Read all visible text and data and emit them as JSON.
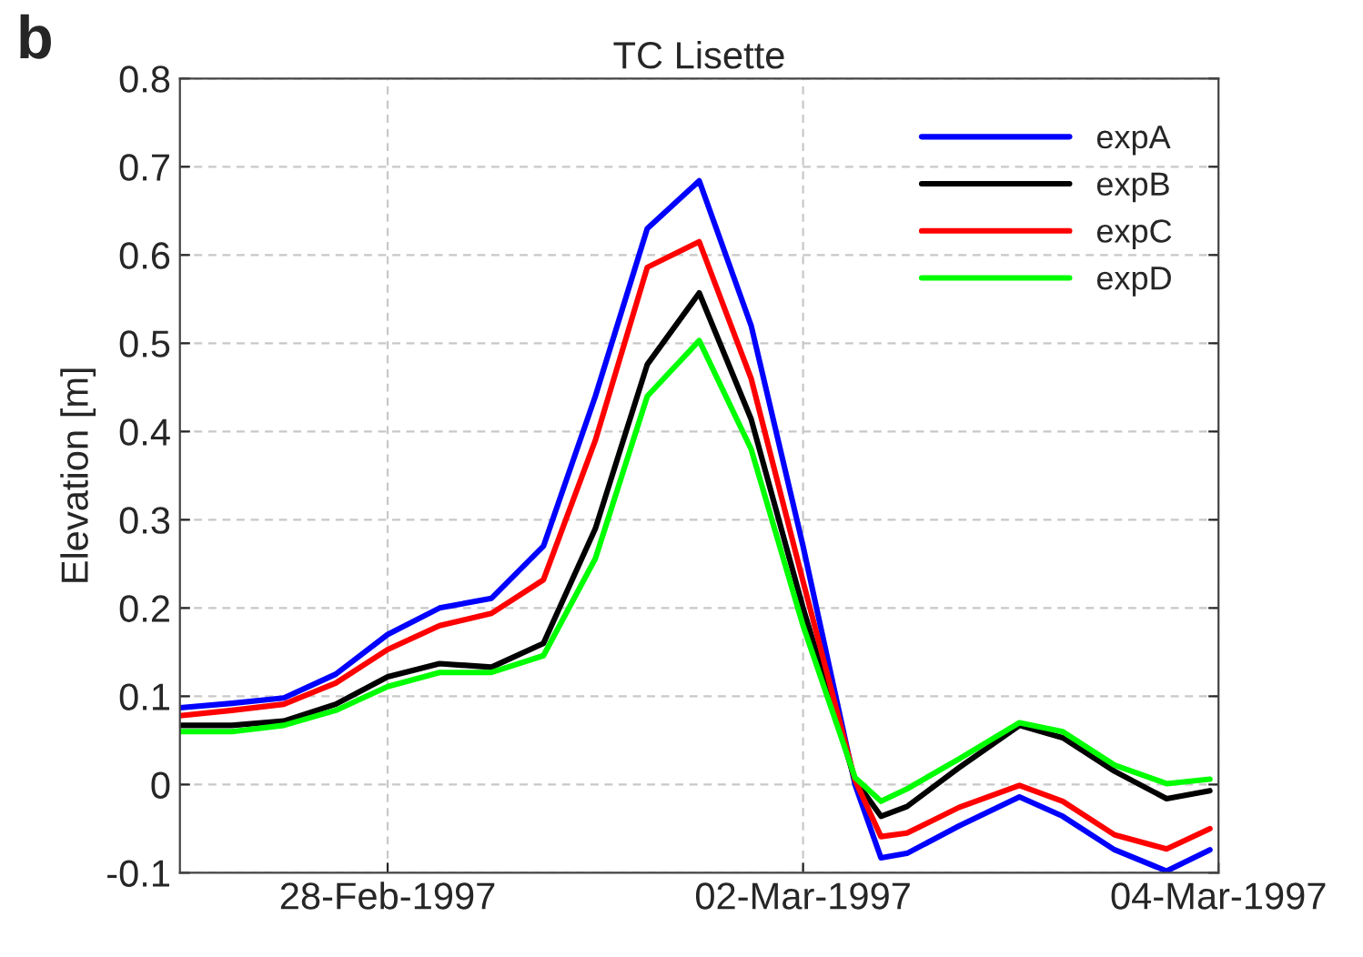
{
  "chart_data": {
    "type": "line",
    "title": "TC Lisette",
    "ylabel": "Elevation [m]",
    "annotations": [
      "b"
    ],
    "x": [
      "1997-02-27T00:00",
      "1997-02-27T06:00",
      "1997-02-27T12:00",
      "1997-02-27T18:00",
      "1997-02-28T00:00",
      "1997-02-28T06:00",
      "1997-02-28T12:00",
      "1997-02-28T18:00",
      "1997-03-01T00:00",
      "1997-03-01T06:00",
      "1997-03-01T12:00",
      "1997-03-01T18:00",
      "1997-03-02T00:00",
      "1997-03-02T06:00",
      "1997-03-02T09:00",
      "1997-03-02T12:00",
      "1997-03-02T18:00",
      "1997-03-03T01:00",
      "1997-03-03T06:00",
      "1997-03-03T12:00",
      "1997-03-03T18:00",
      "1997-03-03T23:00"
    ],
    "series": [
      {
        "name": "expA",
        "color": "#0000ff",
        "values": [
          0.087,
          0.092,
          0.098,
          0.125,
          0.17,
          0.2,
          0.211,
          0.27,
          0.44,
          0.63,
          0.684,
          0.52,
          0.27,
          0.0,
          -0.083,
          -0.078,
          -0.047,
          -0.014,
          -0.036,
          -0.074,
          -0.098,
          -0.074
        ]
      },
      {
        "name": "expB",
        "color": "#000000",
        "values": [
          0.067,
          0.067,
          0.072,
          0.091,
          0.122,
          0.137,
          0.133,
          0.16,
          0.29,
          0.476,
          0.557,
          0.414,
          0.2,
          0.005,
          -0.036,
          -0.025,
          0.019,
          0.067,
          0.053,
          0.015,
          -0.016,
          -0.007
        ]
      },
      {
        "name": "expC",
        "color": "#ff0000",
        "values": [
          0.078,
          0.084,
          0.091,
          0.115,
          0.153,
          0.18,
          0.194,
          0.232,
          0.39,
          0.586,
          0.615,
          0.46,
          0.23,
          0.005,
          -0.059,
          -0.055,
          -0.026,
          -0.001,
          -0.019,
          -0.057,
          -0.073,
          -0.05
        ]
      },
      {
        "name": "expD",
        "color": "#00ff00",
        "values": [
          0.06,
          0.06,
          0.067,
          0.084,
          0.111,
          0.127,
          0.127,
          0.146,
          0.256,
          0.44,
          0.503,
          0.38,
          0.18,
          0.008,
          -0.019,
          -0.005,
          0.029,
          0.07,
          0.06,
          0.022,
          0.001,
          0.006
        ]
      }
    ],
    "xlim": [
      "1997-02-27T00:00",
      "1997-03-04T00:00"
    ],
    "xticks": [
      {
        "value": "1997-02-28",
        "label": "28-Feb-1997"
      },
      {
        "value": "1997-03-02",
        "label": "02-Mar-1997"
      },
      {
        "value": "1997-03-04",
        "label": "04-Mar-1997"
      }
    ],
    "ylim": [
      -0.1,
      0.8
    ],
    "yticks": [
      -0.1,
      0,
      0.1,
      0.2,
      0.3,
      0.4,
      0.5,
      0.6,
      0.7,
      0.8
    ],
    "grid": true,
    "legend": "top right",
    "line_style": "solid",
    "marker": "none"
  }
}
